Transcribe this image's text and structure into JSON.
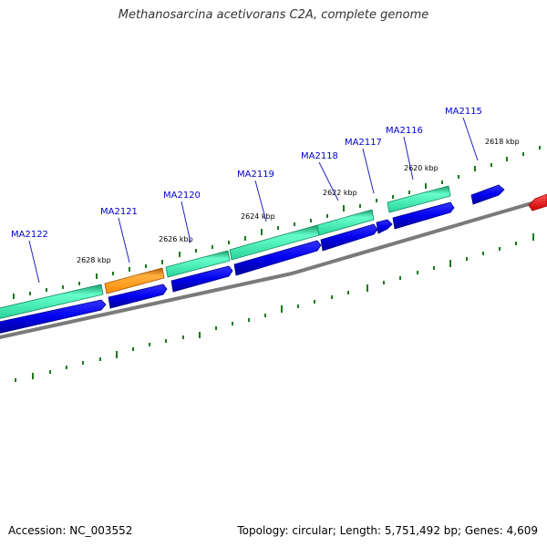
{
  "title": "Methanosarcina acetivorans C2A, complete genome",
  "footer": {
    "accession": "Accession: NC_003552",
    "stats": "Topology: circular; Length: 5,751,492 bp; Genes: 4,609"
  },
  "colors": {
    "forward_cds": "#33e0a8",
    "forward_cds_highlight": "#ff9900",
    "reverse_cds": "#0000ee",
    "other_feature": "#ff0000",
    "backbone": "#808080",
    "gc_ticks": "#1a7a1a",
    "label_text": "#0000cc"
  },
  "scale_labels": [
    "2618 kbp",
    "2620 kbp",
    "2622 kbp",
    "2624 kbp",
    "2626 kbp",
    "2628 kbp"
  ],
  "gene_labels": [
    "MA2115",
    "MA2116",
    "MA2117",
    "MA2118",
    "MA2119",
    "MA2120",
    "MA2121",
    "MA2122"
  ]
}
